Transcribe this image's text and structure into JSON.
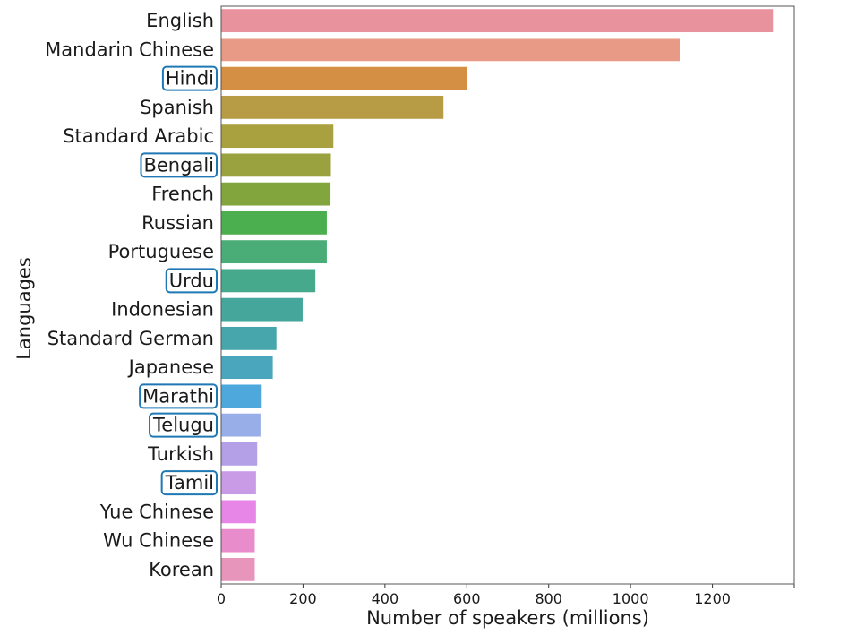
{
  "chart_data": {
    "type": "bar",
    "orientation": "horizontal",
    "title": "",
    "xlabel": "Number of speakers (millions)",
    "ylabel": "Languages",
    "xlim": [
      0,
      1400
    ],
    "x_ticks": [
      0,
      200,
      400,
      600,
      800,
      1000,
      1200
    ],
    "grid": false,
    "legend": "none",
    "highlight_color": "#1f77b4",
    "categories": [
      "English",
      "Mandarin Chinese",
      "Hindi",
      "Spanish",
      "Standard Arabic",
      "Bengali",
      "French",
      "Russian",
      "Portuguese",
      "Urdu",
      "Indonesian",
      "Standard German",
      "Japanese",
      "Marathi",
      "Telugu",
      "Turkish",
      "Tamil",
      "Yue Chinese",
      "Wu Chinese",
      "Korean"
    ],
    "values": [
      1348,
      1120,
      600,
      543,
      274,
      268,
      267,
      258,
      258,
      230,
      199,
      135,
      126,
      99,
      96,
      88,
      85,
      85,
      82,
      82
    ],
    "highlighted": [
      "Hindi",
      "Bengali",
      "Urdu",
      "Marathi",
      "Telugu",
      "Tamil"
    ],
    "colors": [
      "#e8929e",
      "#e89a87",
      "#d58f45",
      "#b89b45",
      "#a9a040",
      "#9aa23f",
      "#82a53e",
      "#4caf4f",
      "#4aad78",
      "#47a98b",
      "#45a79b",
      "#47a6ab",
      "#4aa6bc",
      "#4fa8dc",
      "#98aee8",
      "#b3a0e6",
      "#c99ae6",
      "#e886e8",
      "#e88ccc",
      "#e895bb"
    ]
  }
}
